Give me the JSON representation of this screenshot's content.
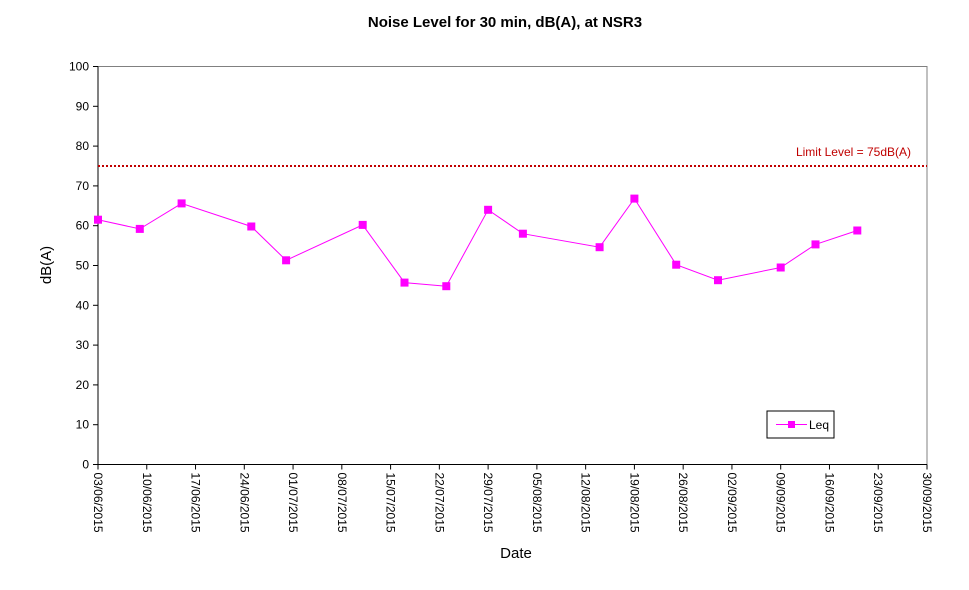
{
  "chart_data": {
    "type": "line",
    "title": "Noise Level for 30 min, dB(A), at NSR3",
    "xlabel": "Date",
    "ylabel": "dB(A)",
    "ylim": [
      0,
      100
    ],
    "yticks": [
      0,
      10,
      20,
      30,
      40,
      50,
      60,
      70,
      80,
      90,
      100
    ],
    "xlim": [
      "03/06/2015",
      "30/09/2015"
    ],
    "xticks": [
      "03/06/2015",
      "10/06/2015",
      "17/06/2015",
      "24/06/2015",
      "01/07/2015",
      "08/07/2015",
      "15/07/2015",
      "22/07/2015",
      "29/07/2015",
      "05/08/2015",
      "12/08/2015",
      "19/08/2015",
      "26/08/2015",
      "02/09/2015",
      "09/09/2015",
      "16/09/2015",
      "23/09/2015",
      "30/09/2015"
    ],
    "grid": false,
    "legend_position": "bottom-right",
    "series": [
      {
        "name": "Leq",
        "color": "#ff00ff",
        "marker": "square",
        "x": [
          "03/06/2015",
          "09/06/2015",
          "15/06/2015",
          "25/06/2015",
          "30/06/2015",
          "11/07/2015",
          "17/07/2015",
          "23/07/2015",
          "29/07/2015",
          "03/08/2015",
          "14/08/2015",
          "19/08/2015",
          "25/08/2015",
          "31/08/2015",
          "09/09/2015",
          "14/09/2015",
          "20/09/2015"
        ],
        "values": [
          61.5,
          59.2,
          65.6,
          59.8,
          51.3,
          60.2,
          45.7,
          44.8,
          64.0,
          58.0,
          54.6,
          66.8,
          50.2,
          46.3,
          49.5,
          55.3,
          58.8
        ]
      }
    ],
    "limit_line": {
      "value": 75,
      "label": "Limit Level  = 75dB(A)",
      "color": "#c00000"
    }
  }
}
